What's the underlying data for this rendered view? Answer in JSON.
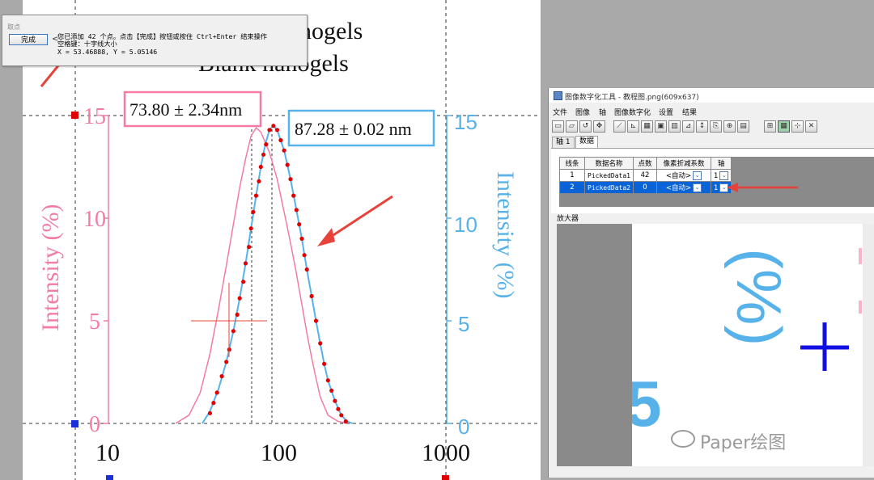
{
  "plot": {
    "title_line1": "nogels",
    "title_line2": "Blank nanogels",
    "left_axis_label": "Intensity (%)",
    "right_axis_label": "Intensity (%)",
    "left_ticks": [
      "0",
      "5",
      "10",
      "15"
    ],
    "right_ticks": [
      "0",
      "5",
      "10",
      "15"
    ],
    "x_ticks": [
      "10",
      "100",
      "1000"
    ],
    "annotation_pink": "73.80 ± 2.34nm",
    "annotation_blue": "87.28 ± 0.02 nm",
    "colors": {
      "pink": "#f37ba4",
      "blue": "#58b2ea",
      "picked": "#e00000",
      "arrow": "#e8433a",
      "crosshair": "#e8433a"
    }
  },
  "chart_data": {
    "type": "line",
    "x_scale": "log",
    "xlim": [
      10,
      1000
    ],
    "ylim": [
      0,
      15
    ],
    "series": [
      {
        "color": "#f37ba4",
        "x": [
          25,
          30,
          35,
          40,
          45,
          50,
          55,
          60,
          65,
          70,
          75,
          80,
          90,
          100,
          110,
          120,
          130,
          140,
          150,
          160,
          170,
          180,
          200,
          230,
          260
        ],
        "y": [
          0,
          0.4,
          1.5,
          3.4,
          5.6,
          7.7,
          9.7,
          11.5,
          12.9,
          14.0,
          14.4,
          14.2,
          13.2,
          11.9,
          10.3,
          8.8,
          7.3,
          5.8,
          4.4,
          3.2,
          2.2,
          1.3,
          0.4,
          0.1,
          0
        ]
      },
      {
        "color": "#58b2ea",
        "x": [
          36,
          40,
          45,
          50,
          55,
          60,
          65,
          70,
          75,
          80,
          85,
          90,
          95,
          100,
          110,
          120,
          130,
          140,
          150,
          160,
          170,
          180,
          190,
          200,
          220,
          240,
          260,
          280
        ],
        "y": [
          0,
          0.6,
          1.7,
          3.0,
          4.5,
          6.1,
          7.8,
          9.5,
          11.1,
          12.5,
          13.6,
          14.3,
          14.5,
          14.3,
          13.3,
          11.9,
          10.4,
          9.0,
          7.5,
          6.2,
          5.0,
          3.9,
          2.9,
          2.1,
          1.1,
          0.4,
          0.1,
          0
        ]
      },
      {
        "color": "#e00000",
        "markers": true,
        "x": [
          40,
          42,
          44,
          47,
          50,
          52,
          55,
          58,
          60,
          63,
          65,
          68,
          70,
          72,
          75,
          78,
          80,
          83,
          86,
          90,
          95,
          100,
          105,
          110,
          115,
          120,
          125,
          130,
          135,
          140,
          145,
          150,
          160,
          170,
          180,
          190,
          200,
          210,
          220,
          230,
          240,
          255
        ],
        "y": [
          0.5,
          1.0,
          1.5,
          2.3,
          3.0,
          3.6,
          4.5,
          5.3,
          6.1,
          6.9,
          7.8,
          8.6,
          9.5,
          10.3,
          11.1,
          11.8,
          12.5,
          13.1,
          13.6,
          14.3,
          14.5,
          14.3,
          13.8,
          13.3,
          12.6,
          11.9,
          11.1,
          10.4,
          9.7,
          9.0,
          8.2,
          7.5,
          6.2,
          5.0,
          3.9,
          2.9,
          2.1,
          1.6,
          1.1,
          0.7,
          0.4,
          0.1
        ]
      }
    ]
  },
  "popup": {
    "title": "取点",
    "done_label": "完成",
    "arrow": "<",
    "line1": "您已添加 42 个点。点击【完成】按钮或按住 Ctrl+Enter 结束操作",
    "line2": "空格键：十字线大小",
    "line3": "X = 53.46888, Y = 5.05146"
  },
  "digitizer": {
    "title": "图像数字化工具 - 教程图.png(609x637)",
    "menu": [
      "文件",
      "图像",
      "轴",
      "图像数字化",
      "设置",
      "结果"
    ],
    "tabs": [
      "轴 1",
      "数据"
    ],
    "table_headers": [
      "线条",
      "数据名称",
      "点数",
      "像素折减系数",
      "轴"
    ],
    "rows": [
      {
        "no": "1",
        "name": "PickedData1",
        "count": "42",
        "factor": "<自动>",
        "axis": "1"
      },
      {
        "no": "2",
        "name": "PickedData2",
        "count": "0",
        "factor": "<自动>",
        "axis": "1"
      }
    ],
    "magnifier_label": "放大器",
    "magnifier_text": "(%)",
    "magnifier_tick": "5",
    "combo_arrow": "⌄"
  },
  "watermark": "Paper绘图"
}
